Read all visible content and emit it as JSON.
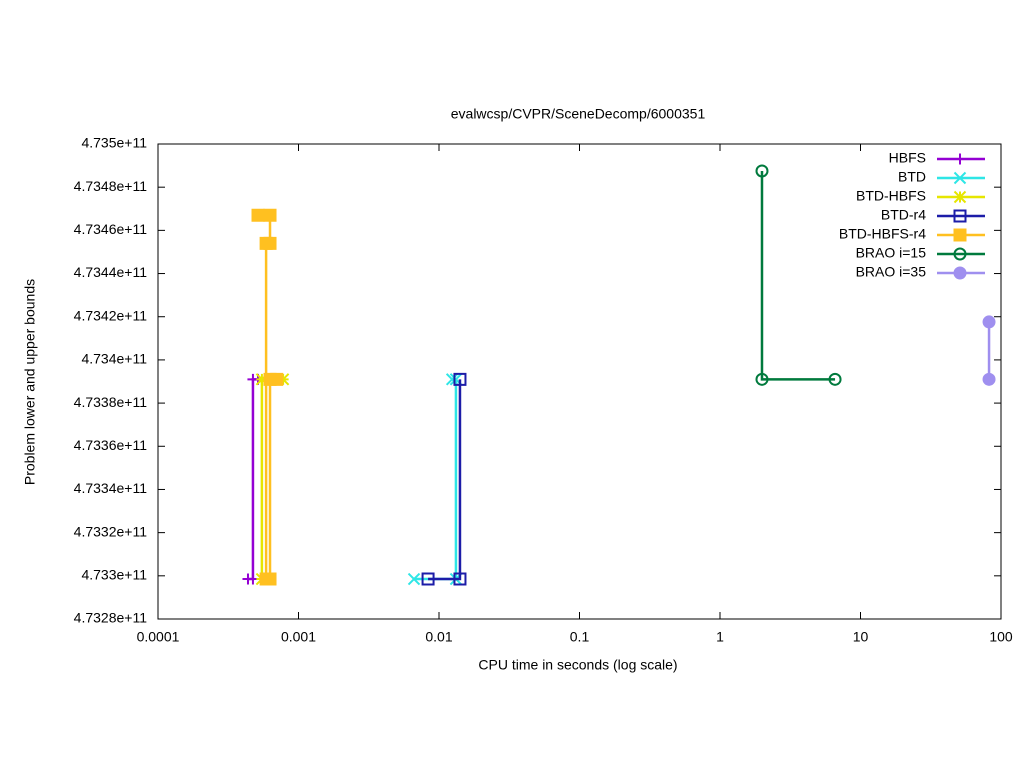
{
  "chart_data": {
    "type": "line",
    "title": "evalwcsp/CVPR/SceneDecomp/6000351",
    "x_label": "CPU time in seconds (log scale)",
    "y_label": "Problem lower and upper bounds",
    "xlog": true,
    "xlim": [
      0.0001,
      100
    ],
    "xticks": [
      0.0001,
      0.001,
      0.01,
      0.1,
      1,
      10,
      100
    ],
    "ylim": [
      473280000000,
      473500000000
    ],
    "yticks": [
      {
        "value": 473280000000,
        "label": "4.7328e+11"
      },
      {
        "value": 473300000000,
        "label": "4.733e+11"
      },
      {
        "value": 473320000000,
        "label": "4.7332e+11"
      },
      {
        "value": 473340000000,
        "label": "4.7334e+11"
      },
      {
        "value": 473360000000,
        "label": "4.7336e+11"
      },
      {
        "value": 473380000000,
        "label": "4.7338e+11"
      },
      {
        "value": 473400000000,
        "label": "4.734e+11"
      },
      {
        "value": 473420000000,
        "label": "4.7342e+11"
      },
      {
        "value": 473440000000,
        "label": "4.7344e+11"
      },
      {
        "value": 473460000000,
        "label": "4.7346e+11"
      },
      {
        "value": 473480000000,
        "label": "4.7348e+11"
      },
      {
        "value": 473500000000,
        "label": "4.735e+11"
      }
    ],
    "legend": "top-right",
    "series": [
      {
        "name": "HBFS",
        "color": "#9400d3",
        "marker": "plus",
        "x": [
          0.000437,
          0.000474,
          0.000474,
          0.000515
        ],
        "values": [
          473298500000,
          473298500000,
          473391000000,
          473391000000
        ]
      },
      {
        "name": "BTD",
        "color": "#2ee6e6",
        "marker": "cross",
        "x": [
          0.00664,
          0.0132,
          0.0132,
          0.0124
        ],
        "values": [
          473298500000,
          473298500000,
          473391000000,
          473391000000
        ]
      },
      {
        "name": "BTD-HBFS",
        "color": "#e6e600",
        "marker": "star",
        "x": [
          0.000549,
          0.000549,
          0.000777
        ],
        "values": [
          473298500000,
          473391000000,
          473391000000
        ]
      },
      {
        "name": "BTD-r4",
        "color": "#1c1ca8",
        "marker": "square",
        "x": [
          0.00836,
          0.0141,
          0.0141
        ],
        "values": [
          473298500000,
          473298500000,
          473391000000
        ]
      },
      {
        "name": "BTD-HBFS-r4",
        "color": "#ffc020",
        "marker": "filled-square",
        "x": [
          0.000515,
          0.000627,
          0.000627,
          0.000588,
          0.000588,
          0.000627,
          0.000627,
          0.0007
        ],
        "values": [
          473467000000,
          473467000000,
          473454000000,
          473454000000,
          473298500000,
          473298500000,
          473391000000,
          473391000000
        ]
      },
      {
        "name": "BRAO i=15",
        "color": "#007a3d",
        "marker": "circle",
        "x": [
          1.99,
          1.99,
          6.59
        ],
        "values": [
          473487500000,
          473391000000,
          473391000000
        ]
      },
      {
        "name": "BRAO i=35",
        "color": "#9f8fef",
        "marker": "filled-circle",
        "x": [
          82.2,
          82.2
        ],
        "values": [
          473417600000,
          473391000000
        ]
      }
    ]
  }
}
